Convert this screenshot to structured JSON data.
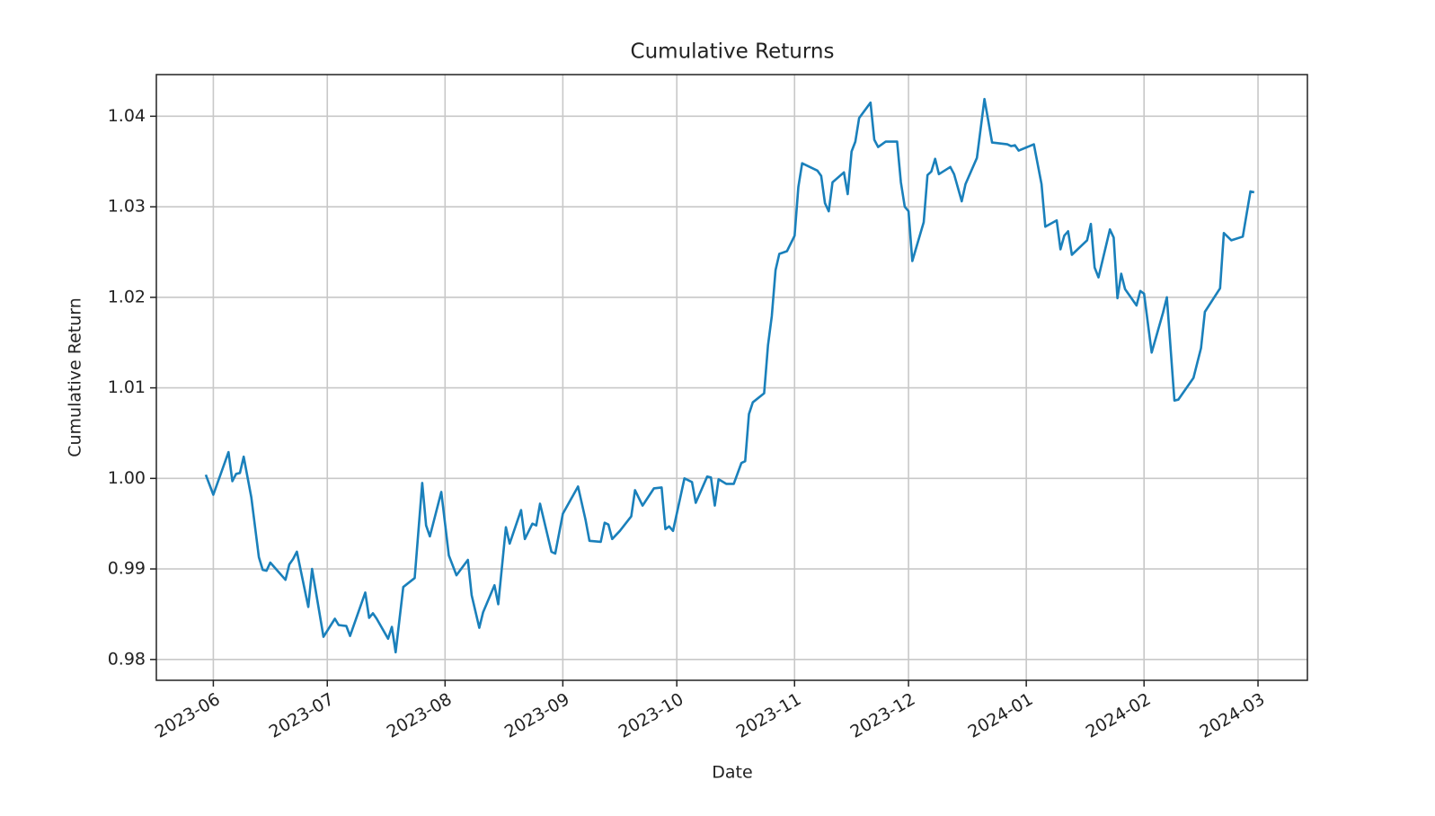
{
  "chart_data": {
    "type": "line",
    "title": "Cumulative Returns",
    "x_label": "Date",
    "y_label": "Cumulative Return",
    "x": [
      -2,
      0,
      4,
      5,
      6,
      7,
      8,
      10,
      12,
      13,
      14,
      15,
      19,
      20,
      21,
      22,
      25,
      26,
      29,
      32,
      33,
      35,
      36,
      40,
      41,
      42,
      43,
      46,
      47,
      48,
      50,
      53,
      55,
      56,
      57,
      60,
      62,
      64,
      67,
      68,
      70,
      71,
      74,
      75,
      77,
      78,
      81,
      82,
      84,
      85,
      86,
      89,
      90,
      92,
      96,
      98,
      99,
      102,
      103,
      104,
      105,
      107,
      110,
      111,
      113,
      116,
      118,
      119,
      120,
      121,
      124,
      126,
      127,
      130,
      131,
      132,
      133,
      135,
      137,
      139,
      140,
      141,
      142,
      145,
      146,
      147,
      148,
      149,
      151,
      153,
      154,
      155,
      159,
      160,
      161,
      162,
      163,
      166,
      167,
      168,
      169,
      170,
      173,
      174,
      175,
      177,
      180,
      181,
      182,
      183,
      184,
      187,
      188,
      189,
      190,
      191,
      194,
      195,
      197,
      198,
      201,
      203,
      205,
      209,
      210,
      211,
      212,
      216,
      218,
      219,
      222,
      223,
      224,
      225,
      226,
      230,
      231,
      232,
      233,
      236,
      237,
      238,
      239,
      240,
      243,
      244,
      245,
      247,
      250,
      251,
      253,
      254,
      258,
      260,
      261,
      265,
      266,
      268,
      271,
      273,
      274
    ],
    "values": [
      1.0004,
      0.9982,
      1.0029,
      0.9997,
      1.0005,
      1.0006,
      1.0024,
      0.9979,
      0.9913,
      0.9899,
      0.9898,
      0.9907,
      0.9888,
      0.9905,
      0.9911,
      0.9919,
      0.9858,
      0.99,
      0.9825,
      0.9845,
      0.9838,
      0.9837,
      0.9826,
      0.9874,
      0.9846,
      0.9851,
      0.9845,
      0.9823,
      0.9836,
      0.9808,
      0.988,
      0.989,
      0.9995,
      0.9948,
      0.9936,
      0.9985,
      0.9915,
      0.9893,
      0.991,
      0.9871,
      0.9835,
      0.9852,
      0.9882,
      0.9861,
      0.9946,
      0.9928,
      0.9965,
      0.9933,
      0.995,
      0.9948,
      0.9972,
      0.9919,
      0.9917,
      0.9961,
      0.9991,
      0.9954,
      0.9931,
      0.993,
      0.9951,
      0.9949,
      0.9933,
      0.9942,
      0.9958,
      0.9987,
      0.997,
      0.9989,
      0.999,
      0.9944,
      0.9947,
      0.9942,
      1.0,
      0.9996,
      0.9973,
      1.0002,
      1.0001,
      0.997,
      0.9999,
      0.9994,
      0.9994,
      1.0017,
      1.0019,
      1.0071,
      1.0084,
      1.0094,
      1.0147,
      1.0179,
      1.023,
      1.0248,
      1.0251,
      1.0268,
      1.0322,
      1.0348,
      1.034,
      1.0334,
      1.0304,
      1.0295,
      1.0327,
      1.0338,
      1.0314,
      1.0361,
      1.0372,
      1.0398,
      1.0415,
      1.0374,
      1.0366,
      1.0372,
      1.0372,
      1.0327,
      1.03,
      1.0295,
      1.024,
      1.0283,
      1.0335,
      1.0339,
      1.0353,
      1.0336,
      1.0344,
      1.0336,
      1.0306,
      1.0325,
      1.0354,
      1.0419,
      1.0371,
      1.0369,
      1.0367,
      1.0368,
      1.0362,
      1.0369,
      1.0325,
      1.0278,
      1.0285,
      1.0253,
      1.0268,
      1.0273,
      1.0247,
      1.0263,
      1.0281,
      1.0233,
      1.0222,
      1.0275,
      1.0266,
      1.0199,
      1.0226,
      1.0209,
      1.0191,
      1.0207,
      1.0204,
      1.0139,
      1.0183,
      1.02,
      1.0086,
      1.0087,
      1.0111,
      1.0144,
      1.0184,
      1.021,
      1.0271,
      1.0263,
      1.0267,
      1.0317,
      1.0316
    ],
    "color": "#1a80bb",
    "xlim": [
      -15,
      288
    ],
    "xticks": [
      {
        "value": 0,
        "label": "2023-06"
      },
      {
        "value": 30,
        "label": "2023-07"
      },
      {
        "value": 61,
        "label": "2023-08"
      },
      {
        "value": 92,
        "label": "2023-09"
      },
      {
        "value": 122,
        "label": "2023-10"
      },
      {
        "value": 153,
        "label": "2023-11"
      },
      {
        "value": 183,
        "label": "2023-12"
      },
      {
        "value": 214,
        "label": "2024-01"
      },
      {
        "value": 245,
        "label": "2024-02"
      },
      {
        "value": 275,
        "label": "2024-03"
      }
    ],
    "ylim": [
      0.9777,
      1.0446
    ],
    "yticks": [
      0.98,
      0.99,
      {
        "value": 1,
        "label": "1.00"
      },
      1.01,
      1.02,
      1.03,
      1.04
    ],
    "grid": true
  }
}
